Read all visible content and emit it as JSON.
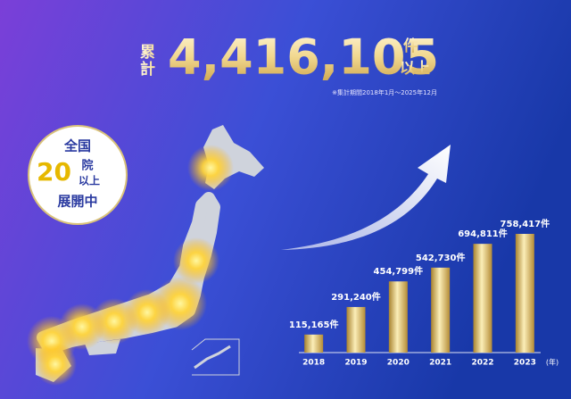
{
  "headline": {
    "prefix": "累計",
    "total": "4,416,105",
    "suffix": [
      "件",
      "以上"
    ],
    "note": "※集計期間2018年1月～2025年12月"
  },
  "badge": {
    "line1": "全国",
    "number": "20",
    "unit": "院",
    "unit2": "以上",
    "line3": "展開中"
  },
  "chart_data": {
    "type": "bar",
    "categories": [
      "2018",
      "2019",
      "2020",
      "2021",
      "2022",
      "2023"
    ],
    "values": [
      115165,
      291240,
      454799,
      542730,
      694811,
      758417
    ],
    "value_labels": [
      "115,165件",
      "291,240件",
      "454,799件",
      "542,730件",
      "694,811件",
      "758,417件"
    ],
    "x_unit": "(年)",
    "color": "#d8b75a"
  }
}
